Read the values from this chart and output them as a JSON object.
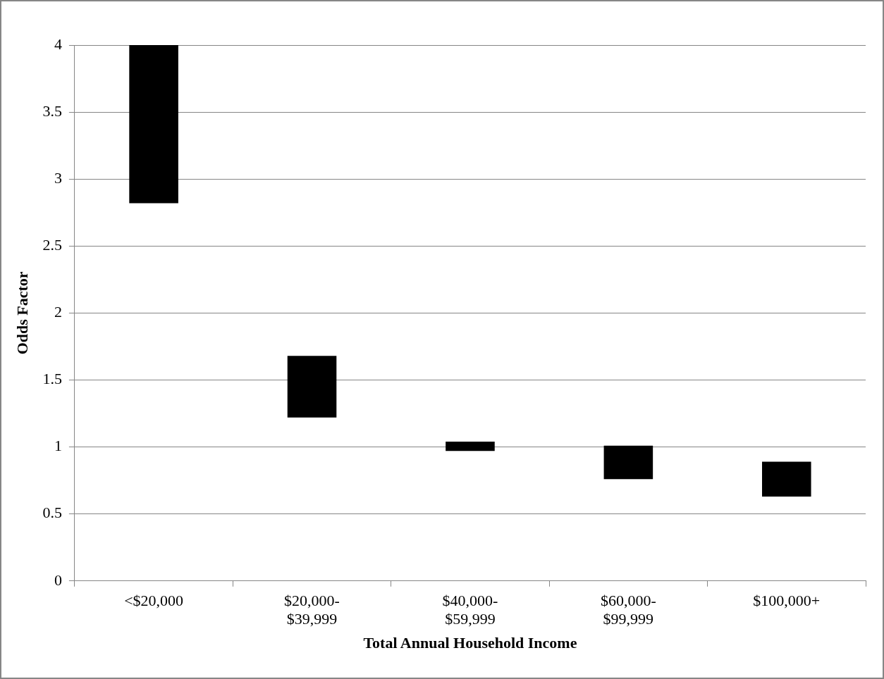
{
  "chart_data": {
    "type": "bar",
    "xlabel": "Total Annual Household Income",
    "ylabel": "Odds Factor",
    "categories": [
      "<$20,000",
      "$20,000-$39,999",
      "$40,000-$59,999",
      "$60,000-$99,999",
      "$100,000+"
    ],
    "values": [
      1.18,
      0.46,
      0.07,
      0.25,
      0.26
    ],
    "base": [
      2.82,
      1.22,
      0.97,
      0.76,
      0.63
    ],
    "color": "#000000",
    "ylim": [
      0,
      4
    ],
    "yticks": [
      0,
      0.5,
      1,
      1.5,
      2,
      2.5,
      3,
      3.5,
      4
    ],
    "grid": "y"
  }
}
